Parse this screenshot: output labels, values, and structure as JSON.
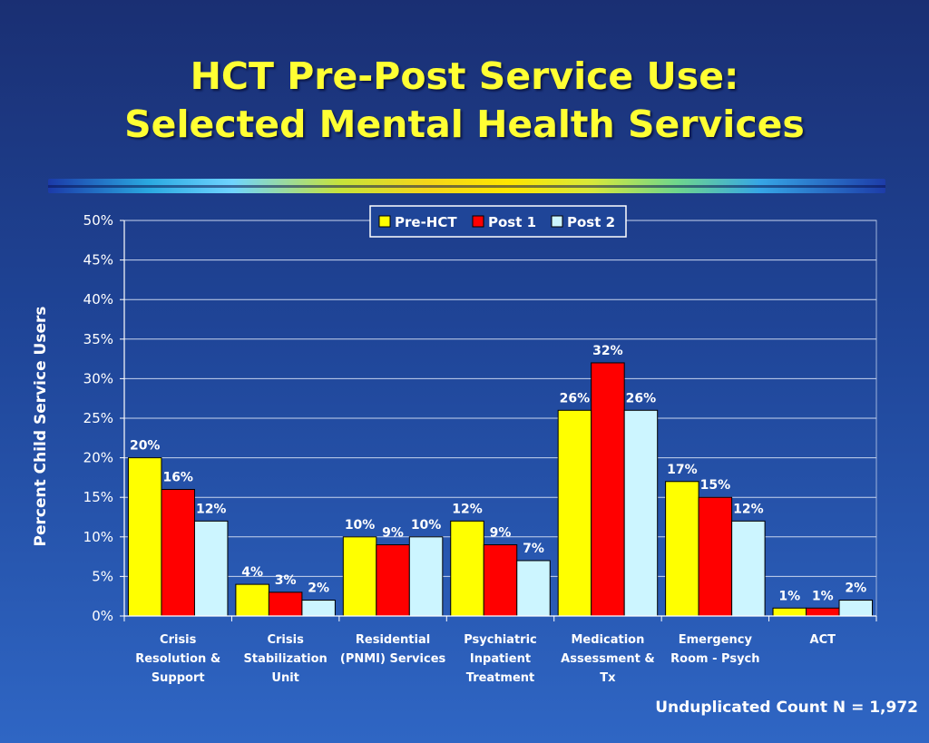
{
  "title_line1": "HCT Pre-Post Service Use:",
  "title_line2": "Selected Mental Health Services",
  "footnote": "Unduplicated Count N = 1,972",
  "colors": {
    "pre_hct": "#ffff00",
    "post1": "#ff0000",
    "post2": "#ccf5ff",
    "title": "#ffff33"
  },
  "chart_data": {
    "type": "bar",
    "title": "",
    "xlabel": "",
    "ylabel": "Percent Child Service Users",
    "ylim": [
      0,
      50
    ],
    "yticks": [
      "0%",
      "5%",
      "10%",
      "15%",
      "20%",
      "25%",
      "30%",
      "35%",
      "40%",
      "45%",
      "50%"
    ],
    "grid": true,
    "legend_position": "top-center",
    "categories": [
      [
        "Crisis",
        "Resolution &",
        "Support"
      ],
      [
        "Crisis",
        "Stabilization",
        "Unit"
      ],
      [
        "Residential",
        "(PNMI) Services"
      ],
      [
        "Psychiatric",
        "Inpatient",
        "Treatment"
      ],
      [
        "Medication",
        "Assessment &",
        "Tx"
      ],
      [
        "Emergency",
        "Room - Psych"
      ],
      [
        "ACT"
      ]
    ],
    "series": [
      {
        "name": "Pre-HCT",
        "color": "#ffff00",
        "values": [
          20,
          4,
          10,
          12,
          26,
          17,
          1
        ],
        "labels": [
          "20%",
          "4%",
          "10%",
          "12%",
          "26%",
          "17%",
          "1%"
        ]
      },
      {
        "name": "Post 1",
        "color": "#ff0000",
        "values": [
          16,
          3,
          9,
          9,
          32,
          15,
          1
        ],
        "labels": [
          "16%",
          "3%",
          "9%",
          "9%",
          "32%",
          "15%",
          "1%"
        ]
      },
      {
        "name": "Post 2",
        "color": "#ccf5ff",
        "values": [
          12,
          2,
          10,
          7,
          26,
          12,
          2
        ],
        "labels": [
          "12%",
          "2%",
          "10%",
          "7%",
          "26%",
          "12%",
          "2%"
        ]
      }
    ]
  }
}
